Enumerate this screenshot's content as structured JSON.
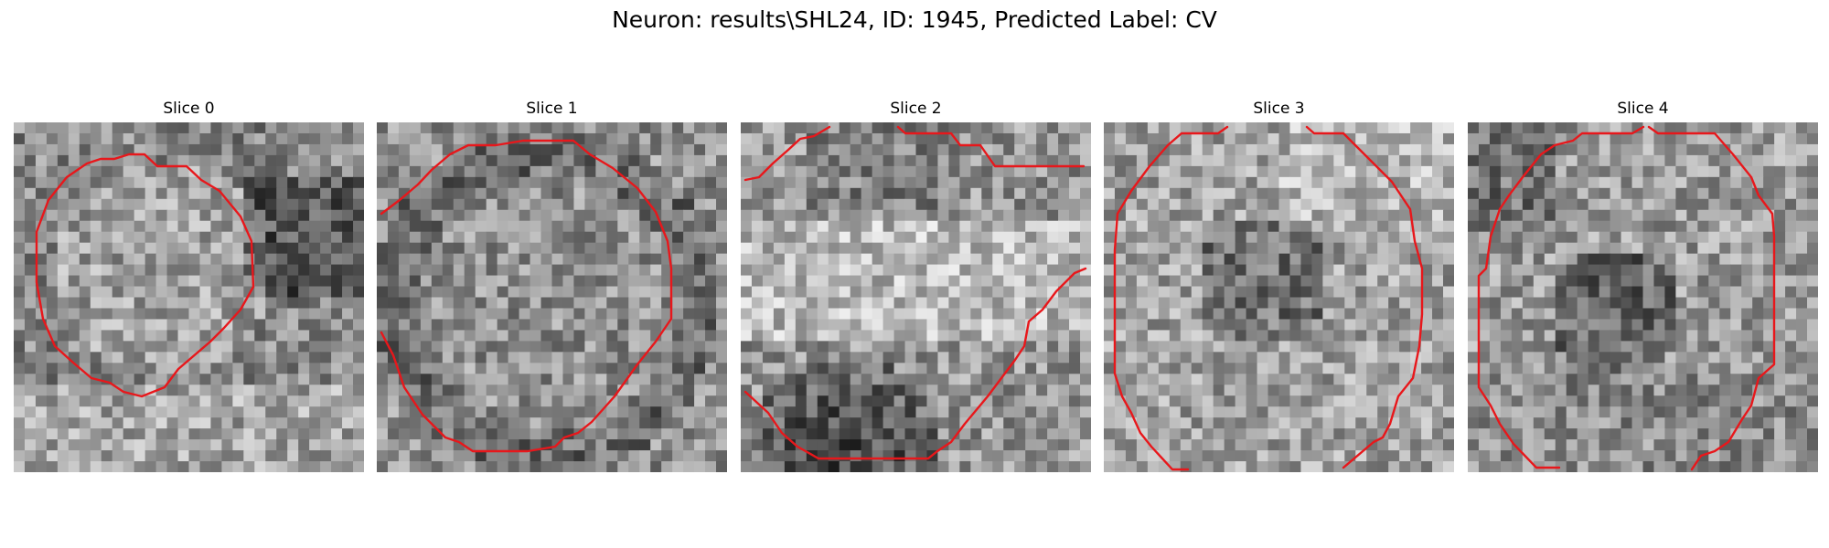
{
  "figure": {
    "title": "Neuron: results\\SHL24, ID: 1945, Predicted Label: CV"
  },
  "panels": [
    {
      "title": "Slice 0"
    },
    {
      "title": "Slice 1"
    },
    {
      "title": "Slice 2"
    },
    {
      "title": "Slice 3"
    },
    {
      "title": "Slice 4"
    }
  ],
  "colors": {
    "contour": "#e8171b",
    "background": "#ffffff"
  }
}
